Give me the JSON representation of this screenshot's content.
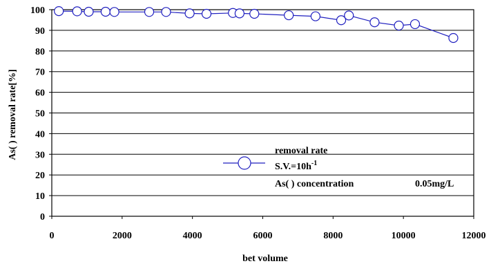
{
  "chart_data": {
    "type": "line",
    "xlabel": "bet volume",
    "ylabel": "As(   ) removal rate[%]",
    "xlim": [
      0,
      12000
    ],
    "ylim": [
      0,
      100
    ],
    "x_ticks": [
      "0",
      "2000",
      "4000",
      "6000",
      "8000",
      "10000",
      "12000"
    ],
    "y_ticks": [
      "0",
      "10",
      "20",
      "30",
      "40",
      "50",
      "60",
      "70",
      "80",
      "90",
      "100"
    ],
    "grid": "horizontal",
    "legend_position": "center",
    "line_color": "#1f1fbf",
    "marker": "open-circle",
    "series": [
      {
        "name": "removal rate",
        "x": [
          200,
          720,
          1050,
          1530,
          1780,
          2770,
          3250,
          3920,
          4400,
          5150,
          5340,
          5760,
          6740,
          7500,
          8230,
          8450,
          9180,
          9870,
          10330,
          11420
        ],
        "y": [
          99.3,
          99.2,
          99.0,
          99.0,
          98.9,
          98.9,
          98.9,
          98.2,
          98.0,
          98.4,
          98.2,
          98.0,
          97.3,
          96.8,
          94.9,
          97.2,
          93.9,
          92.3,
          93.0,
          86.3
        ]
      }
    ],
    "legend": {
      "line1": "removal rate",
      "line2_main": "S.V.=10h",
      "line2_sup": "-1",
      "line3_label": "As(   ) concentration",
      "line3_value": "0.05mg/L"
    }
  }
}
